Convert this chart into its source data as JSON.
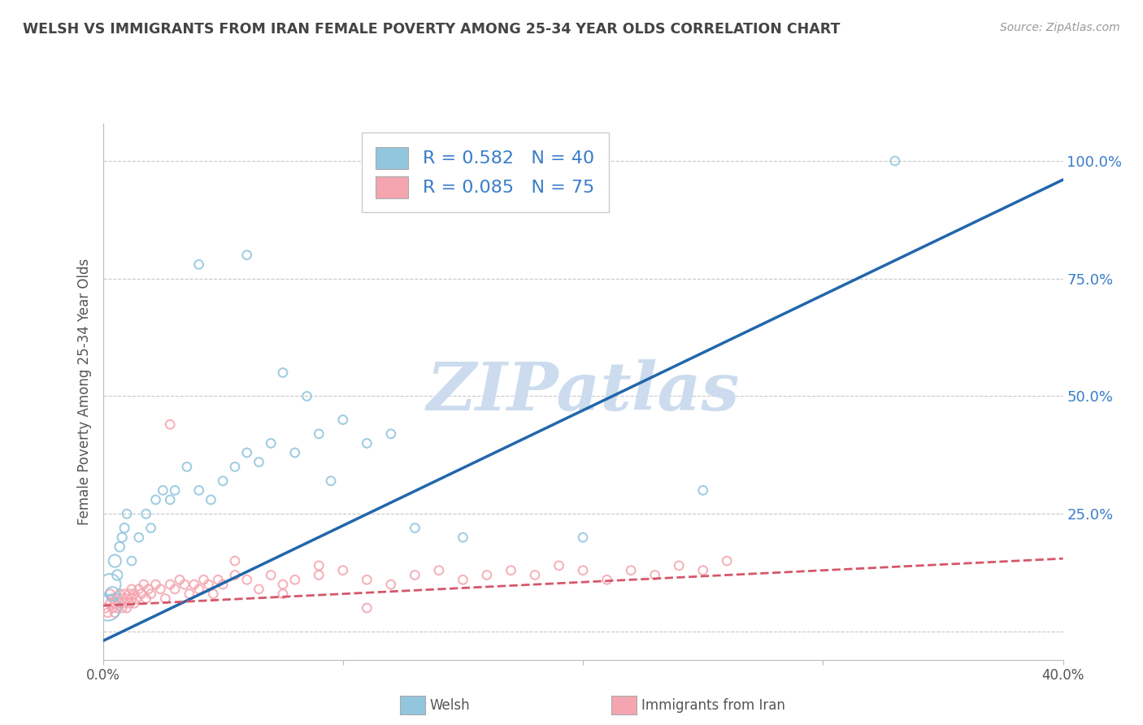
{
  "title": "WELSH VS IMMIGRANTS FROM IRAN FEMALE POVERTY AMONG 25-34 YEAR OLDS CORRELATION CHART",
  "source": "Source: ZipAtlas.com",
  "ylabel": "Female Poverty Among 25-34 Year Olds",
  "y_ticks": [
    0.0,
    0.25,
    0.5,
    0.75,
    1.0
  ],
  "y_tick_labels": [
    "",
    "25.0%",
    "50.0%",
    "75.0%",
    "100.0%"
  ],
  "x_min": 0.0,
  "x_max": 0.4,
  "y_min": -0.06,
  "y_max": 1.08,
  "welsh_R": 0.582,
  "welsh_N": 40,
  "iran_R": 0.085,
  "iran_N": 75,
  "welsh_color": "#92c5de",
  "iran_color": "#f4a5b0",
  "welsh_line_color": "#2166ac",
  "iran_line_color": "#d6566a",
  "watermark": "ZIPatlas",
  "watermark_color": "#ccdcee",
  "background_color": "#ffffff",
  "grid_color": "#c8c8c8",
  "title_color": "#444444",
  "welsh_line_x0": 0.0,
  "welsh_line_y0": -0.02,
  "welsh_line_x1": 0.4,
  "welsh_line_y1": 0.96,
  "iran_line_x0": 0.0,
  "iran_line_y0": 0.055,
  "iran_line_x1": 0.4,
  "iran_line_y1": 0.155,
  "welsh_scatter_x": [
    0.002,
    0.003,
    0.004,
    0.005,
    0.006,
    0.007,
    0.008,
    0.009,
    0.01,
    0.012,
    0.015,
    0.018,
    0.02,
    0.022,
    0.025,
    0.028,
    0.03,
    0.035,
    0.04,
    0.045,
    0.05,
    0.055,
    0.06,
    0.065,
    0.07,
    0.08,
    0.09,
    0.1,
    0.11,
    0.12,
    0.04,
    0.06,
    0.075,
    0.085,
    0.095,
    0.13,
    0.15,
    0.2,
    0.25,
    0.33
  ],
  "welsh_scatter_y": [
    0.05,
    0.1,
    0.08,
    0.15,
    0.12,
    0.18,
    0.2,
    0.22,
    0.25,
    0.15,
    0.2,
    0.25,
    0.22,
    0.28,
    0.3,
    0.28,
    0.3,
    0.35,
    0.3,
    0.28,
    0.32,
    0.35,
    0.38,
    0.36,
    0.4,
    0.38,
    0.42,
    0.45,
    0.4,
    0.42,
    0.78,
    0.8,
    0.55,
    0.5,
    0.32,
    0.22,
    0.2,
    0.2,
    0.3,
    1.0
  ],
  "welsh_scatter_sizes": [
    500,
    350,
    150,
    120,
    80,
    70,
    65,
    65,
    60,
    60,
    60,
    60,
    60,
    60,
    60,
    60,
    60,
    60,
    60,
    60,
    60,
    60,
    60,
    60,
    60,
    60,
    60,
    60,
    60,
    60,
    60,
    60,
    60,
    60,
    60,
    60,
    60,
    60,
    60,
    60
  ],
  "iran_scatter_x": [
    0.001,
    0.002,
    0.003,
    0.003,
    0.004,
    0.004,
    0.005,
    0.005,
    0.006,
    0.006,
    0.007,
    0.007,
    0.008,
    0.008,
    0.009,
    0.009,
    0.01,
    0.01,
    0.011,
    0.011,
    0.012,
    0.012,
    0.013,
    0.013,
    0.014,
    0.015,
    0.016,
    0.017,
    0.018,
    0.019,
    0.02,
    0.022,
    0.024,
    0.026,
    0.028,
    0.03,
    0.032,
    0.034,
    0.036,
    0.038,
    0.04,
    0.042,
    0.044,
    0.046,
    0.048,
    0.05,
    0.055,
    0.06,
    0.065,
    0.07,
    0.075,
    0.08,
    0.09,
    0.1,
    0.11,
    0.12,
    0.13,
    0.14,
    0.15,
    0.16,
    0.17,
    0.18,
    0.19,
    0.2,
    0.21,
    0.22,
    0.23,
    0.24,
    0.25,
    0.26,
    0.028,
    0.055,
    0.075,
    0.09,
    0.11
  ],
  "iran_scatter_y": [
    0.05,
    0.04,
    0.06,
    0.08,
    0.05,
    0.07,
    0.04,
    0.06,
    0.05,
    0.07,
    0.06,
    0.08,
    0.05,
    0.07,
    0.06,
    0.08,
    0.05,
    0.07,
    0.06,
    0.08,
    0.07,
    0.09,
    0.06,
    0.08,
    0.07,
    0.09,
    0.08,
    0.1,
    0.07,
    0.09,
    0.08,
    0.1,
    0.09,
    0.07,
    0.1,
    0.09,
    0.11,
    0.1,
    0.08,
    0.1,
    0.09,
    0.11,
    0.1,
    0.08,
    0.11,
    0.1,
    0.12,
    0.11,
    0.09,
    0.12,
    0.1,
    0.11,
    0.12,
    0.13,
    0.11,
    0.1,
    0.12,
    0.13,
    0.11,
    0.12,
    0.13,
    0.12,
    0.14,
    0.13,
    0.11,
    0.13,
    0.12,
    0.14,
    0.13,
    0.15,
    0.44,
    0.15,
    0.08,
    0.14,
    0.05
  ],
  "iran_scatter_sizes": [
    60,
    60,
    60,
    60,
    60,
    60,
    60,
    60,
    60,
    60,
    60,
    60,
    60,
    60,
    60,
    60,
    60,
    60,
    60,
    60,
    60,
    60,
    60,
    60,
    60,
    60,
    60,
    60,
    60,
    60,
    60,
    60,
    60,
    60,
    60,
    60,
    60,
    60,
    60,
    60,
    60,
    60,
    60,
    60,
    60,
    60,
    60,
    60,
    60,
    60,
    60,
    60,
    60,
    60,
    60,
    60,
    60,
    60,
    60,
    60,
    60,
    60,
    60,
    60,
    60,
    60,
    60,
    60,
    60,
    60,
    60,
    60,
    60,
    60,
    60
  ]
}
